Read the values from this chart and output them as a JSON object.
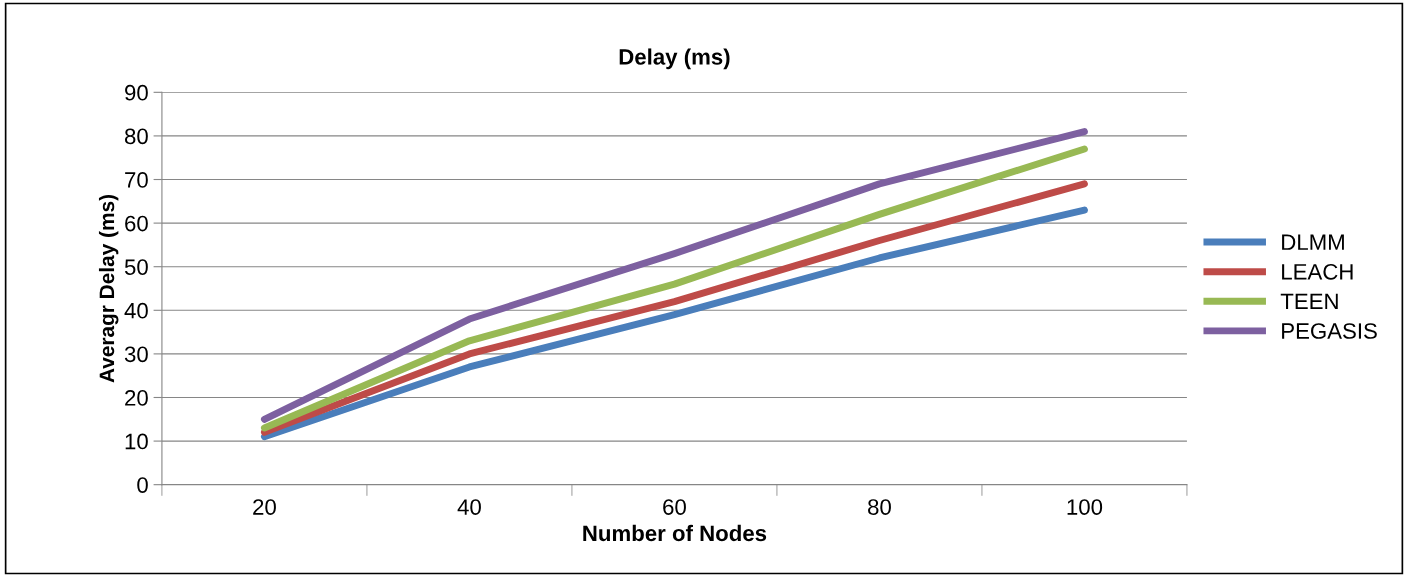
{
  "chart_data": {
    "type": "line",
    "title": "Delay (ms)",
    "xlabel": "Number of Nodes",
    "ylabel": "Averagr Delay (ms)",
    "categories": [
      "20",
      "40",
      "60",
      "80",
      "100"
    ],
    "series": [
      {
        "name": "DLMM",
        "color": "#4a7ebb",
        "values": [
          11,
          27,
          39,
          52,
          63
        ]
      },
      {
        "name": "LEACH",
        "color": "#be4b48",
        "values": [
          12,
          30,
          42,
          56,
          69
        ]
      },
      {
        "name": "TEEN",
        "color": "#98b954",
        "values": [
          13,
          33,
          46,
          62,
          77
        ]
      },
      {
        "name": "PEGASIS",
        "color": "#7d60a0",
        "values": [
          15,
          38,
          53,
          69,
          81
        ]
      }
    ],
    "ylim": [
      0,
      90
    ],
    "yticks": [
      0,
      10,
      20,
      30,
      40,
      50,
      60,
      70,
      80,
      90
    ],
    "grid": "y",
    "legend": "right",
    "marker": "none",
    "line_style": "solid"
  }
}
